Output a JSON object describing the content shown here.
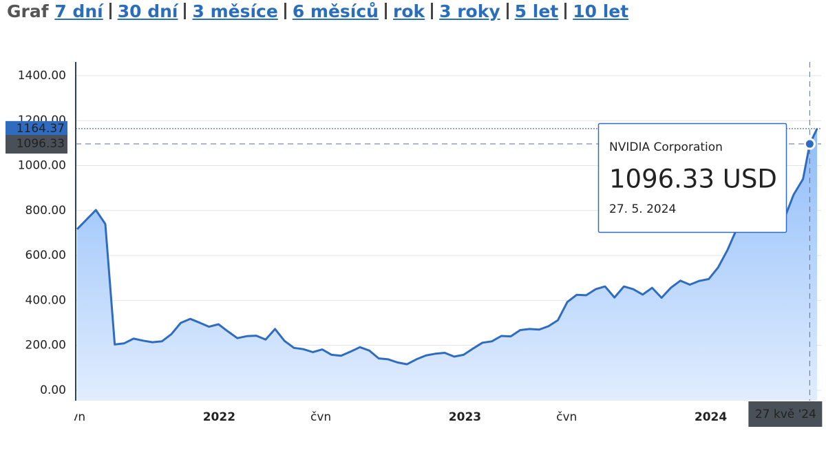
{
  "header": {
    "label": "Graf",
    "links": [
      "7 dní",
      "30 dní",
      "3 měsíce",
      "6 měsíců",
      "rok",
      "3 roky",
      "5 let",
      "10 let"
    ]
  },
  "chart_data": {
    "type": "area",
    "x": [
      "2021-06-04",
      "2021-06-18",
      "2021-07-02",
      "2021-07-16",
      "2021-07-30",
      "2021-08-13",
      "2021-08-27",
      "2021-09-10",
      "2021-09-24",
      "2021-10-08",
      "2021-10-22",
      "2021-11-05",
      "2021-11-19",
      "2021-12-03",
      "2021-12-17",
      "2021-12-31",
      "2022-01-14",
      "2022-01-28",
      "2022-02-11",
      "2022-02-25",
      "2022-03-11",
      "2022-03-25",
      "2022-04-08",
      "2022-04-22",
      "2022-05-06",
      "2022-05-20",
      "2022-06-03",
      "2022-06-17",
      "2022-07-01",
      "2022-07-15",
      "2022-07-29",
      "2022-08-12",
      "2022-08-26",
      "2022-09-09",
      "2022-09-23",
      "2022-10-07",
      "2022-10-21",
      "2022-11-04",
      "2022-11-18",
      "2022-12-02",
      "2022-12-16",
      "2022-12-30",
      "2023-01-13",
      "2023-01-27",
      "2023-02-10",
      "2023-02-24",
      "2023-03-10",
      "2023-03-24",
      "2023-04-07",
      "2023-04-21",
      "2023-05-05",
      "2023-05-19",
      "2023-06-02",
      "2023-06-16",
      "2023-06-30",
      "2023-07-14",
      "2023-07-28",
      "2023-08-11",
      "2023-08-25",
      "2023-09-08",
      "2023-09-22",
      "2023-10-06",
      "2023-10-20",
      "2023-11-03",
      "2023-11-17",
      "2023-12-01",
      "2023-12-15",
      "2023-12-29",
      "2024-01-12",
      "2024-01-26",
      "2024-02-09",
      "2024-02-23",
      "2024-03-08",
      "2024-03-22",
      "2024-04-05",
      "2024-04-19",
      "2024-05-03",
      "2024-05-17",
      "2024-05-27",
      "2024-06-07"
    ],
    "series": [
      {
        "name": "NVIDIA Corporation",
        "color": "#2f6cc0",
        "values": [
          717,
          760,
          802,
          740,
          204,
          209,
          230,
          221,
          214,
          218,
          250,
          300,
          318,
          301,
          283,
          294,
          262,
          232,
          241,
          243,
          226,
          273,
          220,
          189,
          183,
          170,
          182,
          158,
          154,
          172,
          192,
          177,
          142,
          138,
          124,
          116,
          138,
          155,
          163,
          167,
          150,
          158,
          186,
          212,
          218,
          242,
          240,
          268,
          273,
          270,
          285,
          312,
          393,
          425,
          423,
          450,
          462,
          413,
          462,
          450,
          426,
          456,
          412,
          457,
          488,
          470,
          487,
          495,
          547,
          625,
          721,
          790,
          875,
          943,
          880,
          762,
          870,
          940,
          1096.33,
          1164.37
        ]
      }
    ],
    "xlim": [
      "2021-06-02",
      "2024-06-13"
    ],
    "xticks": [
      {
        "value": "2021-06-01",
        "label": "čvn"
      },
      {
        "value": "2022-01-01",
        "label": "2022"
      },
      {
        "value": "2022-06-01",
        "label": "čvn"
      },
      {
        "value": "2023-01-01",
        "label": "2023"
      },
      {
        "value": "2023-06-01",
        "label": "čvn"
      },
      {
        "value": "2024-01-01",
        "label": "2024"
      }
    ],
    "ylim": [
      -46,
      1461
    ],
    "yticks": [
      {
        "value": 0,
        "label": "0.00"
      },
      {
        "value": 200,
        "label": "200.00"
      },
      {
        "value": 400,
        "label": "400.00"
      },
      {
        "value": 600,
        "label": "600.00"
      },
      {
        "value": 800,
        "label": "800.00"
      },
      {
        "value": 1000,
        "label": "1000.00"
      },
      {
        "value": 1200,
        "label": "1200.00"
      },
      {
        "value": 1400,
        "label": "1400.00"
      }
    ],
    "grid": true,
    "tooltip": {
      "value": "1096.33 USD",
      "date": "27. 5. 2024",
      "x_label": "27 kvě '24"
    }
  }
}
